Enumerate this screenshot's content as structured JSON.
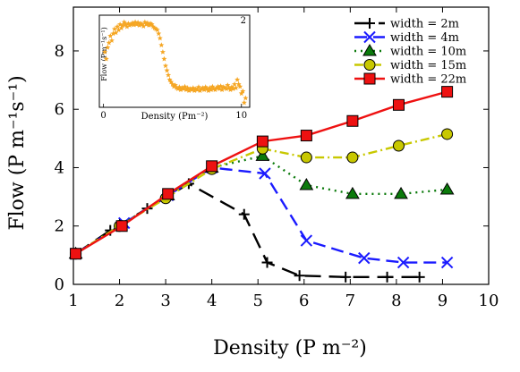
{
  "chart_data": [
    {
      "type": "line",
      "title": "",
      "xlabel": "Density (P m⁻²)",
      "ylabel": "Flow (P m⁻¹s⁻¹)",
      "xlim": [
        1,
        10
      ],
      "ylim": [
        0,
        9.5
      ],
      "xticks": [
        1,
        2,
        3,
        4,
        5,
        6,
        7,
        8,
        9,
        10
      ],
      "yticks": [
        0,
        2,
        4,
        6,
        8
      ],
      "legend_position": "top-right",
      "series": [
        {
          "name": "width = 2m",
          "color": "#000000",
          "marker": "plus",
          "dash": "long-dash",
          "x": [
            1.05,
            1.8,
            2.6,
            3.5,
            4.7,
            5.2,
            5.9,
            6.9,
            7.8,
            8.5
          ],
          "y": [
            1.05,
            1.85,
            2.6,
            3.45,
            2.4,
            0.75,
            0.3,
            0.25,
            0.25,
            0.25
          ]
        },
        {
          "name": "width = 4m",
          "color": "#1a1aff",
          "marker": "x",
          "dash": "dashed",
          "x": [
            1.05,
            2.1,
            3.05,
            4.0,
            5.15,
            6.05,
            7.3,
            8.15,
            9.1
          ],
          "y": [
            1.05,
            2.1,
            3.05,
            4.0,
            3.8,
            1.5,
            0.9,
            0.75,
            0.75
          ]
        },
        {
          "name": "width = 10m",
          "color": "#0b7a0b",
          "marker": "triangle",
          "dash": "dotted",
          "x": [
            1.05,
            2.0,
            3.05,
            4.0,
            5.1,
            6.05,
            7.05,
            8.1,
            9.1
          ],
          "y": [
            1.05,
            2.0,
            3.05,
            4.0,
            4.4,
            3.4,
            3.1,
            3.1,
            3.25
          ]
        },
        {
          "name": "width = 15m",
          "color": "#c8c800",
          "marker": "circle",
          "dash": "dash-dot",
          "x": [
            1.05,
            2.0,
            3.0,
            4.0,
            5.1,
            6.05,
            7.05,
            8.05,
            9.1
          ],
          "y": [
            1.05,
            2.0,
            2.95,
            3.95,
            4.65,
            4.35,
            4.35,
            4.75,
            5.15
          ]
        },
        {
          "name": "width = 22m",
          "color": "#ee1111",
          "marker": "square",
          "dash": "solid",
          "x": [
            1.05,
            2.05,
            3.05,
            4.0,
            5.1,
            6.05,
            7.05,
            8.05,
            9.1
          ],
          "y": [
            1.05,
            2.0,
            3.1,
            4.05,
            4.9,
            5.1,
            5.6,
            6.15,
            6.6
          ]
        }
      ]
    },
    {
      "type": "scatter",
      "title": "",
      "xlabel": "Density (Pm⁻²)",
      "ylabel": "Flow (Pm⁻¹s⁻¹)",
      "xlim": [
        -0.3,
        10.6
      ],
      "ylim": [
        0,
        2
      ],
      "xticks": [
        0,
        10
      ],
      "yticks": [
        2
      ],
      "marker": "star",
      "color": "#f5a623",
      "series": [
        {
          "x": [
            0.1,
            0.2,
            0.3,
            0.4,
            0.5,
            0.6,
            0.7,
            0.8,
            0.9,
            1.0,
            1.1,
            1.2,
            1.3,
            1.4,
            1.5,
            1.6,
            1.7,
            1.8,
            1.9,
            2.0,
            2.1,
            2.2,
            2.3,
            2.4,
            2.5,
            2.6,
            2.7,
            2.8,
            2.9,
            3.0,
            3.1,
            3.2,
            3.3,
            3.4,
            3.5,
            3.6,
            3.7,
            3.8,
            3.9,
            4.0,
            4.1,
            4.2,
            4.3,
            4.4,
            4.5,
            4.6,
            4.7,
            4.8,
            4.9,
            5.0,
            5.1,
            5.2,
            5.3,
            5.4,
            5.5,
            5.6,
            5.7,
            5.8,
            5.9,
            6.0,
            6.1,
            6.2,
            6.3,
            6.4,
            6.5,
            6.6,
            6.7,
            6.8,
            6.9,
            7.0,
            7.1,
            7.2,
            7.3,
            7.4,
            7.5,
            7.6,
            7.7,
            7.8,
            7.9,
            8.0,
            8.1,
            8.2,
            8.3,
            8.4,
            8.5,
            8.6,
            8.7,
            8.8,
            8.9,
            9.0,
            9.1,
            9.2,
            9.3,
            9.4,
            9.5,
            9.6,
            9.7,
            9.8,
            9.9,
            10.0,
            10.1,
            10.2,
            10.3
          ],
          "y": [
            1.2,
            1.05,
            1.3,
            1.4,
            1.55,
            1.45,
            1.6,
            1.7,
            1.62,
            1.75,
            1.68,
            1.8,
            1.72,
            1.78,
            1.85,
            1.8,
            1.75,
            1.82,
            1.78,
            1.8,
            1.83,
            1.79,
            1.85,
            1.8,
            1.84,
            1.78,
            1.82,
            1.8,
            1.76,
            1.85,
            1.8,
            1.83,
            1.78,
            1.82,
            1.8,
            1.75,
            1.72,
            1.7,
            1.68,
            1.6,
            1.5,
            1.35,
            1.2,
            1.05,
            0.9,
            0.8,
            0.7,
            0.6,
            0.55,
            0.5,
            0.45,
            0.48,
            0.42,
            0.4,
            0.44,
            0.38,
            0.42,
            0.4,
            0.45,
            0.38,
            0.42,
            0.36,
            0.4,
            0.38,
            0.42,
            0.36,
            0.4,
            0.38,
            0.44,
            0.36,
            0.4,
            0.42,
            0.38,
            0.44,
            0.4,
            0.36,
            0.42,
            0.38,
            0.45,
            0.4,
            0.38,
            0.42,
            0.45,
            0.4,
            0.46,
            0.38,
            0.44,
            0.42,
            0.4,
            0.48,
            0.42,
            0.38,
            0.44,
            0.4,
            0.5,
            0.42,
            0.6,
            0.5,
            0.45,
            0.3,
            0.35,
            0.1,
            0.2
          ]
        }
      ]
    }
  ],
  "legend": {
    "title": ""
  }
}
